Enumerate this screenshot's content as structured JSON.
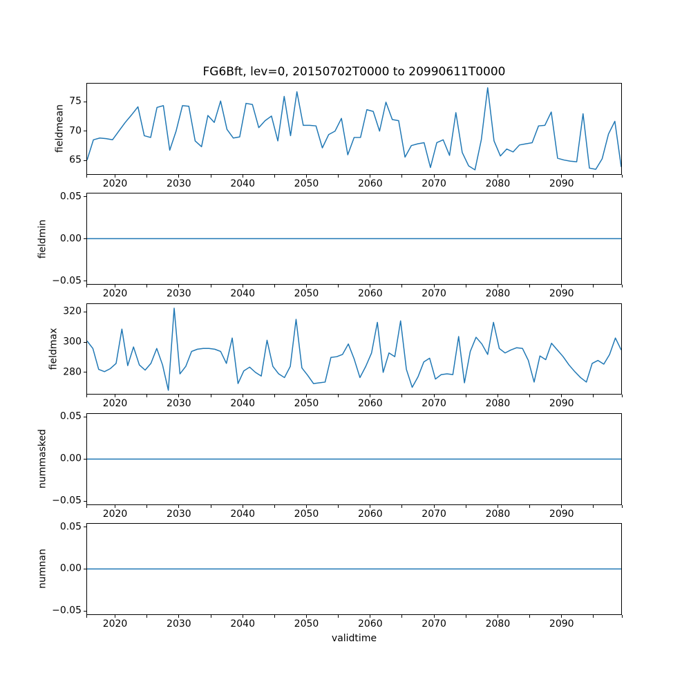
{
  "title": "FG6Bft, lev=0, 20150702T0000 to 20990611T0000",
  "xlabel": "validtime",
  "line_color": "#1f77b4",
  "x_axis": {
    "label": "validtime",
    "lim": [
      2015.5,
      2099.45
    ],
    "labeled_tick_values": [
      2020,
      2030,
      2040,
      2050,
      2060,
      2070,
      2080,
      2090
    ],
    "labeled_tick_labels": [
      "2020",
      "2030",
      "2040",
      "2050",
      "2060",
      "2070",
      "2080",
      "2090"
    ],
    "unlabeled_tick_values": [
      2015.5,
      2025,
      2035,
      2045,
      2055,
      2065,
      2075,
      2085,
      2095,
      2099.45
    ]
  },
  "chart_data": [
    {
      "type": "line",
      "name": "fieldmean",
      "ylabel": "fieldmean",
      "x_range_years": [
        2015,
        2099
      ],
      "values": [
        65.0,
        68.5,
        68.8,
        68.7,
        68.5,
        70.0,
        71.5,
        72.8,
        74.2,
        69.2,
        68.9,
        74.1,
        74.4,
        66.7,
        70.0,
        74.4,
        74.3,
        68.3,
        67.3,
        72.7,
        71.5,
        75.2,
        70.3,
        68.8,
        69.0,
        74.8,
        74.6,
        70.6,
        71.8,
        72.6,
        68.3,
        76.0,
        69.2,
        76.8,
        71.0,
        71.0,
        70.9,
        67.1,
        69.4,
        70.0,
        72.2,
        65.9,
        68.9,
        68.9,
        73.7,
        73.4,
        70.0,
        75.0,
        72.0,
        71.8,
        65.5,
        67.5,
        67.8,
        68.0,
        63.7,
        68.0,
        68.5,
        65.8,
        73.2,
        66.3,
        64.0,
        63.3,
        68.5,
        77.5,
        68.3,
        65.7,
        66.9,
        66.4,
        67.6,
        67.8,
        68.0,
        70.9,
        71.0,
        73.3,
        65.3,
        65.0,
        64.8,
        64.7,
        73.0,
        63.6,
        63.4,
        65.2,
        69.5,
        71.7,
        63.8
      ],
      "ytick_values": [
        65,
        70,
        75
      ],
      "ytick_labels": [
        "65",
        "70",
        "75"
      ],
      "ylim": [
        62.59,
        78.21
      ]
    },
    {
      "type": "line",
      "name": "fieldmin",
      "ylabel": "fieldmin",
      "x_range_years": [
        2015,
        2099
      ],
      "constant_value": 0.0,
      "ytick_values": [
        -0.05,
        0.0,
        0.05
      ],
      "ytick_labels": [
        "−0.05",
        "0.00",
        "0.05"
      ],
      "ylim": [
        -0.0545,
        0.0545
      ]
    },
    {
      "type": "line",
      "name": "fieldmax",
      "ylabel": "fieldmax",
      "x_range_years": [
        2015,
        2099
      ],
      "values": [
        301,
        296,
        282,
        280.5,
        282.5,
        286,
        309,
        284.5,
        297,
        285,
        281.5,
        286,
        296,
        285,
        268,
        323,
        279,
        284,
        294,
        295.5,
        296,
        296,
        295.5,
        294,
        286,
        303,
        272.5,
        281,
        283.5,
        280,
        277.5,
        301.5,
        284,
        279,
        276.5,
        284,
        315.5,
        283,
        278,
        272.5,
        273,
        273.5,
        290,
        290.5,
        292,
        299,
        289,
        276.5,
        284,
        293,
        313.5,
        280,
        293,
        290.5,
        314.5,
        282,
        270,
        277,
        287,
        289.5,
        275.5,
        278.5,
        279,
        278.5,
        304,
        273,
        294,
        303.5,
        299,
        292,
        313.5,
        296,
        293,
        295,
        296.5,
        296,
        288,
        273.5,
        291,
        288.5,
        299.5,
        295,
        290.5,
        285,
        280.5,
        276.5,
        273.5,
        286,
        288,
        285.5,
        292,
        303,
        295
      ],
      "ytick_values": [
        280,
        300,
        320
      ],
      "ytick_labels": [
        "280",
        "300",
        "320"
      ],
      "ylim": [
        265.25,
        325.75
      ]
    },
    {
      "type": "line",
      "name": "nummasked",
      "ylabel": "nummasked",
      "x_range_years": [
        2015,
        2099
      ],
      "constant_value": 0.0,
      "ytick_values": [
        -0.05,
        0.0,
        0.05
      ],
      "ytick_labels": [
        "−0.05",
        "0.00",
        "0.05"
      ],
      "ylim": [
        -0.0545,
        0.0545
      ]
    },
    {
      "type": "line",
      "name": "numnan",
      "ylabel": "numnan",
      "x_range_years": [
        2015,
        2099
      ],
      "constant_value": 0.0,
      "ytick_values": [
        -0.05,
        0.0,
        0.05
      ],
      "ytick_labels": [
        "−0.05",
        "0.00",
        "0.05"
      ],
      "ylim": [
        -0.0545,
        0.0545
      ]
    }
  ]
}
